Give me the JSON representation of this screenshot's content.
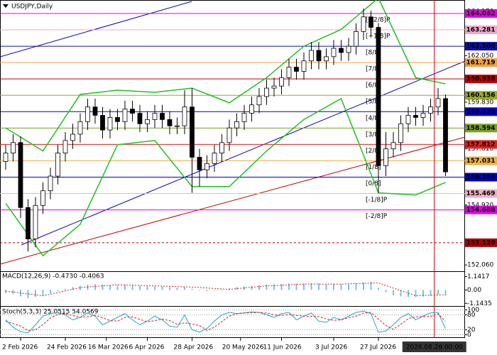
{
  "chart_data": [
    {
      "type": "candlestick",
      "title": "USDJPY,Daily",
      "open": [
        157.0,
        157.4,
        157.9,
        154.8,
        153.3,
        154.9,
        155.6,
        156.3,
        157.4,
        158.0,
        158.3,
        158.9,
        159.6,
        159.2,
        158.5,
        159.1,
        158.9,
        159.5,
        159.3,
        158.8,
        159.0,
        159.3,
        159.0,
        158.7,
        158.7,
        159.6,
        157.2,
        156.6,
        156.9,
        157.4,
        157.9,
        158.6,
        158.9,
        159.3,
        159.7,
        160.1,
        160.5,
        160.6,
        161.0,
        161.5,
        161.3,
        161.8,
        162.3,
        161.8,
        162.0,
        162.4,
        162.2,
        162.5,
        163.2,
        163.9,
        163.4,
        156.8,
        157.6,
        157.9,
        158.8,
        159.2,
        159.1,
        159.3,
        159.6,
        160.0
      ],
      "high": [
        157.8,
        158.3,
        158.2,
        155.2,
        155.3,
        156.0,
        156.7,
        157.8,
        158.4,
        158.8,
        159.3,
        160.0,
        160.0,
        159.6,
        159.5,
        159.5,
        159.9,
        159.9,
        159.7,
        159.4,
        159.7,
        159.7,
        159.4,
        159.1,
        160.4,
        160.5,
        157.6,
        157.3,
        157.8,
        158.3,
        159.0,
        159.3,
        159.7,
        160.1,
        160.5,
        160.9,
        161.0,
        161.4,
        161.9,
        161.9,
        162.2,
        162.7,
        162.7,
        162.4,
        162.8,
        162.8,
        162.9,
        163.6,
        164.3,
        164.2,
        163.6,
        158.4,
        158.4,
        159.2,
        159.6,
        159.6,
        159.7,
        160.0,
        160.5,
        160.2
      ],
      "low": [
        156.6,
        157.0,
        154.3,
        152.7,
        152.9,
        154.5,
        155.2,
        155.9,
        157.0,
        157.6,
        157.9,
        158.5,
        158.8,
        158.1,
        158.1,
        158.5,
        158.5,
        158.9,
        158.4,
        158.4,
        158.6,
        158.6,
        158.3,
        158.3,
        158.3,
        155.5,
        155.8,
        156.2,
        156.5,
        157.0,
        157.5,
        158.2,
        158.5,
        158.9,
        159.3,
        159.7,
        160.1,
        160.2,
        160.6,
        160.9,
        160.9,
        161.4,
        161.4,
        161.4,
        161.6,
        161.8,
        161.8,
        162.1,
        162.8,
        163.0,
        155.5,
        156.3,
        157.2,
        157.5,
        158.4,
        158.7,
        158.7,
        158.9,
        159.2,
        156.3
      ],
      "close": [
        157.4,
        157.9,
        154.8,
        153.3,
        154.9,
        155.6,
        156.3,
        157.4,
        158.0,
        158.3,
        158.9,
        159.6,
        159.2,
        158.5,
        159.1,
        158.9,
        159.5,
        159.3,
        158.8,
        159.0,
        159.3,
        159.0,
        158.7,
        158.7,
        159.6,
        157.2,
        156.6,
        156.9,
        157.4,
        157.9,
        158.6,
        158.9,
        159.3,
        159.7,
        160.1,
        160.5,
        160.6,
        161.0,
        161.5,
        161.3,
        161.8,
        162.3,
        161.8,
        162.0,
        162.4,
        162.2,
        162.5,
        163.2,
        163.9,
        163.4,
        156.8,
        157.6,
        157.9,
        158.8,
        159.2,
        159.1,
        159.3,
        159.6,
        160.0,
        156.5
      ],
      "xlim": [
        -0.76,
        61.62
      ],
      "xticks": [
        {
          "value": 2,
          "label": "2 Feb 2026"
        },
        {
          "value": 8,
          "label": "24 Feb 2026"
        },
        {
          "value": 13.5,
          "label": "16 Mar 2026"
        },
        {
          "value": 19,
          "label": "6 Apr 2026"
        },
        {
          "value": 25,
          "label": "28 Apr 2026"
        },
        {
          "value": 31.5,
          "label": "20 May 2026"
        },
        {
          "value": 37,
          "label": "11 Jun 2026"
        },
        {
          "value": 44,
          "label": "3 Jul 2026"
        },
        {
          "value": 50,
          "label": "27 Jul 2026"
        }
      ],
      "highlight": {
        "value": 57.5,
        "label": "2026.08.28 00:00",
        "color": "#d00000"
      },
      "ylim": [
        151.76,
        164.57
      ],
      "yticks": [
        {
          "value": 164.17,
          "label": "164.170"
        },
        {
          "value": 162.05,
          "label": "162.050"
        },
        {
          "value": 159.83,
          "label": "159.830"
        },
        {
          "value": 157.61,
          "label": "157.610"
        },
        {
          "value": 154.92,
          "label": "154.920"
        },
        {
          "value": 152.06,
          "label": "152.060"
        }
      ],
      "levels": [
        {
          "value": 164.062,
          "label": "164.062",
          "name": "[+2/8]P",
          "color": "#e000e0"
        },
        {
          "value": 163.281,
          "label": "163.281",
          "name": "[+1/8]P",
          "color": "#f0a8c8"
        },
        {
          "value": 162.5,
          "label": "162.500",
          "name": "[8/8]",
          "color": "#1010a0"
        },
        {
          "value": 161.719,
          "label": "161.719",
          "name": "[7/8]",
          "color": "#f0a040"
        },
        {
          "value": 160.938,
          "label": "160.938",
          "name": "[6/8]",
          "color": "#c00000"
        },
        {
          "value": 160.156,
          "label": "160.156",
          "name": "[5/8]",
          "color": "#98a828"
        },
        {
          "value": 159.375,
          "label": "159.375",
          "name": "[4/8]",
          "color": "#0000c0"
        },
        {
          "value": 158.594,
          "label": "158.594",
          "name": "[3/8]",
          "color": "#78a028"
        },
        {
          "value": 157.812,
          "label": "157.812",
          "name": "[2/8]",
          "color": "#e02020"
        },
        {
          "value": 157.031,
          "label": "157.031",
          "name": "[1/8]",
          "color": "#f0b040"
        },
        {
          "value": 156.25,
          "label": "156.250",
          "name": "[0/8]",
          "color": "#0000c0"
        },
        {
          "value": 155.469,
          "label": "155.469",
          "name": "[-1/8]P",
          "color": "#f0b0c8"
        },
        {
          "value": 154.688,
          "label": "154.688",
          "name": "[-2/8]P",
          "color": "#e000e0"
        },
        {
          "value": 153.12,
          "label": "153.120",
          "color": "#b00000",
          "dashed": true
        }
      ],
      "bands": [
        {
          "color": "#20c020",
          "x": [
            0,
            5,
            10,
            15,
            20,
            25,
            30,
            35,
            40,
            45,
            50,
            55,
            59
          ],
          "values": [
            158.6,
            157.5,
            160.2,
            160.4,
            160.3,
            160.5,
            159.8,
            161.0,
            162.5,
            163.3,
            164.8,
            161.0,
            160.7
          ]
        },
        {
          "color": "#20c020",
          "x": [
            0,
            5,
            10,
            15,
            20,
            25,
            30,
            35,
            40,
            45,
            50,
            55,
            59
          ],
          "values": [
            155.0,
            152.5,
            154.0,
            157.8,
            158.0,
            155.8,
            155.8,
            157.5,
            159.0,
            160.0,
            155.5,
            155.4,
            156.0
          ]
        }
      ]
    },
    {
      "type": "macd",
      "title": "MACD(12,26,9) -0.4730 -0.4063",
      "color": "#70c8e0",
      "values": [
        -0.25,
        -0.35,
        -0.55,
        -0.7,
        -0.6,
        -0.45,
        -0.3,
        -0.1,
        0.1,
        0.25,
        0.35,
        0.45,
        0.5,
        0.45,
        0.4,
        0.4,
        0.42,
        0.4,
        0.35,
        0.3,
        0.3,
        0.3,
        0.25,
        0.2,
        0.25,
        0.1,
        -0.05,
        -0.1,
        -0.05,
        0.05,
        0.15,
        0.25,
        0.3,
        0.35,
        0.4,
        0.45,
        0.48,
        0.5,
        0.55,
        0.55,
        0.55,
        0.6,
        0.55,
        0.5,
        0.5,
        0.48,
        0.48,
        0.55,
        0.65,
        0.7,
        0.2,
        -0.2,
        -0.45,
        -0.55,
        -0.6,
        -0.6,
        -0.55,
        -0.5,
        -0.4,
        -0.473
      ],
      "signal": {
        "color": "#d02020",
        "x": [
          0,
          5,
          10,
          15,
          20,
          25,
          30,
          35,
          40,
          45,
          50,
          55,
          59
        ],
        "values": [
          -0.1,
          -0.5,
          0.2,
          0.45,
          0.35,
          0.25,
          0.05,
          0.35,
          0.5,
          0.5,
          0.6,
          -0.5,
          -0.4063
        ]
      },
      "ylim": [
        -1.31,
        1.54
      ],
      "yticks": [
        1.1417,
        {
          "value": 0,
          "label": "0.00"
        },
        -1.1435
      ]
    },
    {
      "type": "stochastic",
      "title": "Stoch(5,3,3) 25.0515 54.0569",
      "series": [
        {
          "color": "#20a8c8",
          "values": [
            60,
            30,
            12,
            8,
            40,
            75,
            85,
            90,
            80,
            60,
            70,
            88,
            75,
            40,
            55,
            70,
            85,
            60,
            40,
            55,
            75,
            60,
            35,
            30,
            80,
            20,
            10,
            25,
            55,
            80,
            90,
            85,
            88,
            92,
            90,
            80,
            70,
            85,
            90,
            60,
            75,
            88,
            55,
            50,
            70,
            60,
            75,
            90,
            95,
            85,
            10,
            15,
            40,
            70,
            85,
            60,
            75,
            88,
            90,
            25.0515
          ]
        },
        {
          "color": "#d02020",
          "dashed": true,
          "values": [
            55,
            45,
            35,
            17,
            20,
            41,
            67,
            83,
            85,
            77,
            70,
            73,
            78,
            68,
            57,
            55,
            70,
            72,
            62,
            52,
            57,
            63,
            57,
            42,
            48,
            43,
            37,
            18,
            30,
            53,
            75,
            85,
            88,
            88,
            90,
            87,
            80,
            78,
            82,
            78,
            75,
            74,
            73,
            64,
            58,
            60,
            68,
            75,
            87,
            90,
            63,
            37,
            22,
            42,
            65,
            72,
            73,
            74,
            84,
            54.0569
          ]
        }
      ],
      "ylim": [
        -10,
        110
      ],
      "yticks": [
        100,
        80,
        20,
        0
      ]
    }
  ]
}
